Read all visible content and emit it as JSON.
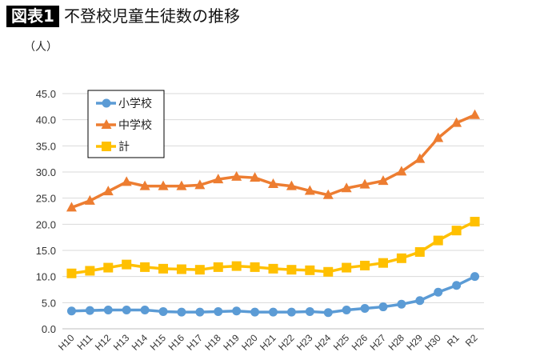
{
  "header": {
    "figure_label": "図表1",
    "title": "不登校児童生徒数の推移"
  },
  "chart_data": {
    "type": "line",
    "title": "不登校児童生徒数の推移",
    "ylabel": "（人）",
    "xlabel": "",
    "ylim": [
      0,
      45
    ],
    "ytick_step": 5,
    "yticks": [
      "0.0",
      "5.0",
      "10.0",
      "15.0",
      "20.0",
      "25.0",
      "30.0",
      "35.0",
      "40.0",
      "45.0"
    ],
    "grid": true,
    "legend_position": "top-left",
    "categories": [
      "H10",
      "H11",
      "H12",
      "H13",
      "H14",
      "H15",
      "H16",
      "H17",
      "H18",
      "H19",
      "H20",
      "H21",
      "H22",
      "H23",
      "H24",
      "H25",
      "H26",
      "H27",
      "H28",
      "H29",
      "H30",
      "R1",
      "R2"
    ],
    "series": [
      {
        "name": "小学校",
        "color": "#5B9BD5",
        "marker": "circle",
        "values": [
          3.4,
          3.5,
          3.6,
          3.6,
          3.6,
          3.3,
          3.2,
          3.2,
          3.3,
          3.4,
          3.2,
          3.2,
          3.2,
          3.3,
          3.1,
          3.6,
          3.9,
          4.2,
          4.7,
          5.4,
          7.0,
          8.3,
          10.0
        ]
      },
      {
        "name": "中学校",
        "color": "#ED7D31",
        "marker": "triangle",
        "values": [
          23.2,
          24.5,
          26.3,
          28.1,
          27.3,
          27.3,
          27.3,
          27.5,
          28.6,
          29.1,
          28.9,
          27.7,
          27.3,
          26.4,
          25.6,
          26.9,
          27.6,
          28.3,
          30.1,
          32.5,
          36.5,
          39.4,
          40.9
        ]
      },
      {
        "name": "計",
        "color": "#FFC000",
        "marker": "square",
        "values": [
          10.6,
          11.1,
          11.7,
          12.3,
          11.8,
          11.5,
          11.4,
          11.3,
          11.8,
          12.0,
          11.8,
          11.5,
          11.3,
          11.2,
          10.9,
          11.7,
          12.1,
          12.6,
          13.5,
          14.7,
          16.9,
          18.8,
          20.5
        ]
      }
    ]
  }
}
